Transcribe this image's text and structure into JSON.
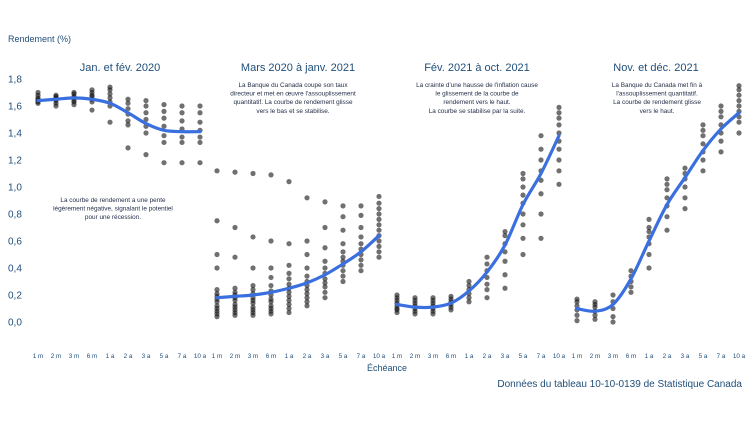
{
  "chart_data": {
    "type": "scatter",
    "ylabel": "Rendement (%)",
    "xlabel": "Échéance",
    "source": "Données du tableau 10-10-0139 de Statistique Canada",
    "ylim": [
      0,
      1.8
    ],
    "yticks": [
      "0,0",
      "0,2",
      "0,4",
      "0,6",
      "0,8",
      "1,0",
      "1,2",
      "1,4",
      "1,6",
      "1,8"
    ],
    "categories": [
      "1 m",
      "2 m",
      "3 m",
      "6 m",
      "1 a",
      "2 a",
      "3 a",
      "5 a",
      "7 a",
      "10 a"
    ],
    "grid": false,
    "colors": {
      "curve": "#3a6fe0",
      "points": "#1a1a1a",
      "text": "#1f4e79"
    },
    "panels": [
      {
        "title": "Jan. et fév. 2020",
        "note": [
          "La courbe de rendement a une pente",
          "légèrement négative, signalant le potentiel",
          "pour une récession."
        ],
        "curve": [
          1.64,
          1.65,
          1.66,
          1.65,
          1.62,
          1.55,
          1.47,
          1.42,
          1.41,
          1.41
        ],
        "points": [
          [
            1.62,
            1.63,
            1.64,
            1.66,
            1.68,
            1.7,
            1.65
          ],
          [
            1.6,
            1.62,
            1.64,
            1.65,
            1.66,
            1.67,
            1.68
          ],
          [
            1.61,
            1.63,
            1.64,
            1.66,
            1.67,
            1.69,
            1.7
          ],
          [
            1.57,
            1.63,
            1.65,
            1.67,
            1.68,
            1.7,
            1.72
          ],
          [
            1.48,
            1.6,
            1.63,
            1.66,
            1.69,
            1.72,
            1.74
          ],
          [
            1.29,
            1.46,
            1.49,
            1.54,
            1.58,
            1.62,
            1.65
          ],
          [
            1.24,
            1.4,
            1.45,
            1.5,
            1.55,
            1.6,
            1.64
          ],
          [
            1.18,
            1.33,
            1.38,
            1.45,
            1.51,
            1.56,
            1.61
          ],
          [
            1.18,
            1.33,
            1.37,
            1.43,
            1.49,
            1.55,
            1.6
          ],
          [
            1.18,
            1.33,
            1.37,
            1.42,
            1.48,
            1.55,
            1.6
          ]
        ]
      },
      {
        "title": "Mars 2020 à janv. 2021",
        "note": [
          "La Banque du Canada coupe son taux",
          "directeur et met en œuvre l'assouplissement",
          "quantitatif. La courbe de rendement glisse",
          "vers le bas et se stabilise."
        ],
        "curve": [
          0.18,
          0.19,
          0.2,
          0.22,
          0.25,
          0.29,
          0.35,
          0.43,
          0.52,
          0.64
        ],
        "points": [
          [
            0.04,
            0.06,
            0.08,
            0.1,
            0.12,
            0.15,
            0.17,
            0.19,
            0.21,
            0.24,
            0.4,
            0.5,
            0.75,
            1.12
          ],
          [
            0.05,
            0.07,
            0.09,
            0.11,
            0.13,
            0.16,
            0.18,
            0.2,
            0.22,
            0.25,
            0.48,
            0.7,
            1.11
          ],
          [
            0.05,
            0.07,
            0.09,
            0.11,
            0.14,
            0.16,
            0.18,
            0.21,
            0.24,
            0.27,
            0.4,
            0.63,
            1.1
          ],
          [
            0.06,
            0.08,
            0.1,
            0.12,
            0.15,
            0.17,
            0.2,
            0.23,
            0.27,
            0.33,
            0.4,
            0.6,
            1.09
          ],
          [
            0.07,
            0.1,
            0.13,
            0.16,
            0.19,
            0.22,
            0.25,
            0.28,
            0.32,
            0.36,
            0.42,
            0.58,
            1.04
          ],
          [
            0.12,
            0.15,
            0.18,
            0.21,
            0.24,
            0.27,
            0.3,
            0.34,
            0.4,
            0.5,
            0.6,
            0.92
          ],
          [
            0.18,
            0.22,
            0.26,
            0.29,
            0.32,
            0.36,
            0.4,
            0.45,
            0.55,
            0.7,
            0.89
          ],
          [
            0.3,
            0.34,
            0.38,
            0.42,
            0.45,
            0.48,
            0.52,
            0.58,
            0.68,
            0.78,
            0.86
          ],
          [
            0.38,
            0.42,
            0.46,
            0.5,
            0.54,
            0.58,
            0.63,
            0.7,
            0.79,
            0.86
          ],
          [
            0.48,
            0.52,
            0.56,
            0.6,
            0.64,
            0.68,
            0.72,
            0.76,
            0.8,
            0.84,
            0.88,
            0.93
          ]
        ]
      },
      {
        "title": "Fév. 2021 à oct. 2021",
        "note": [
          "La crainte d'une hausse de l'inflation cause",
          "le glissement de la courbe de",
          "rendement vers le haut.",
          "La courbe se stabilise par la suite."
        ],
        "curve": [
          0.13,
          0.11,
          0.11,
          0.14,
          0.23,
          0.37,
          0.57,
          0.87,
          1.1,
          1.38
        ],
        "points": [
          [
            0.07,
            0.09,
            0.1,
            0.12,
            0.14,
            0.16,
            0.18,
            0.2
          ],
          [
            0.06,
            0.08,
            0.1,
            0.12,
            0.14,
            0.16,
            0.18
          ],
          [
            0.06,
            0.08,
            0.1,
            0.12,
            0.14,
            0.16,
            0.18
          ],
          [
            0.09,
            0.11,
            0.13,
            0.15,
            0.17,
            0.19
          ],
          [
            0.15,
            0.18,
            0.21,
            0.24,
            0.27,
            0.3
          ],
          [
            0.18,
            0.24,
            0.28,
            0.33,
            0.38,
            0.43,
            0.48
          ],
          [
            0.25,
            0.35,
            0.45,
            0.52,
            0.58,
            0.64,
            0.67
          ],
          [
            0.5,
            0.62,
            0.72,
            0.8,
            0.88,
            0.94,
            1.0,
            1.06,
            1.1
          ],
          [
            0.62,
            0.8,
            0.95,
            1.05,
            1.12,
            1.2,
            1.28,
            1.38
          ],
          [
            1.02,
            1.12,
            1.2,
            1.28,
            1.34,
            1.4,
            1.46,
            1.51,
            1.55,
            1.59
          ]
        ]
      },
      {
        "title": "Nov. et déc. 2021",
        "note": [
          "La Banque du Canada met fin à",
          "l'assouplissement quantitatif.",
          "La courbe de rendement glisse",
          "vers le haut."
        ],
        "curve": [
          0.1,
          0.08,
          0.13,
          0.32,
          0.6,
          0.87,
          1.07,
          1.27,
          1.43,
          1.55
        ],
        "points": [
          [
            0.01,
            0.05,
            0.09,
            0.12,
            0.15,
            0.17
          ],
          [
            0.02,
            0.05,
            0.08,
            0.11,
            0.13,
            0.15
          ],
          [
            0.0,
            0.04,
            0.1,
            0.15,
            0.2
          ],
          [
            0.22,
            0.26,
            0.3,
            0.34,
            0.38
          ],
          [
            0.4,
            0.5,
            0.58,
            0.63,
            0.67,
            0.7,
            0.76
          ],
          [
            0.68,
            0.78,
            0.86,
            0.92,
            0.98,
            1.02,
            1.06
          ],
          [
            0.84,
            0.92,
            1.0,
            1.06,
            1.1,
            1.14
          ],
          [
            1.12,
            1.2,
            1.26,
            1.32,
            1.38,
            1.42,
            1.46
          ],
          [
            1.26,
            1.34,
            1.4,
            1.46,
            1.52,
            1.56,
            1.6
          ],
          [
            1.4,
            1.48,
            1.52,
            1.56,
            1.6,
            1.64,
            1.68,
            1.72,
            1.75
          ]
        ]
      }
    ]
  }
}
